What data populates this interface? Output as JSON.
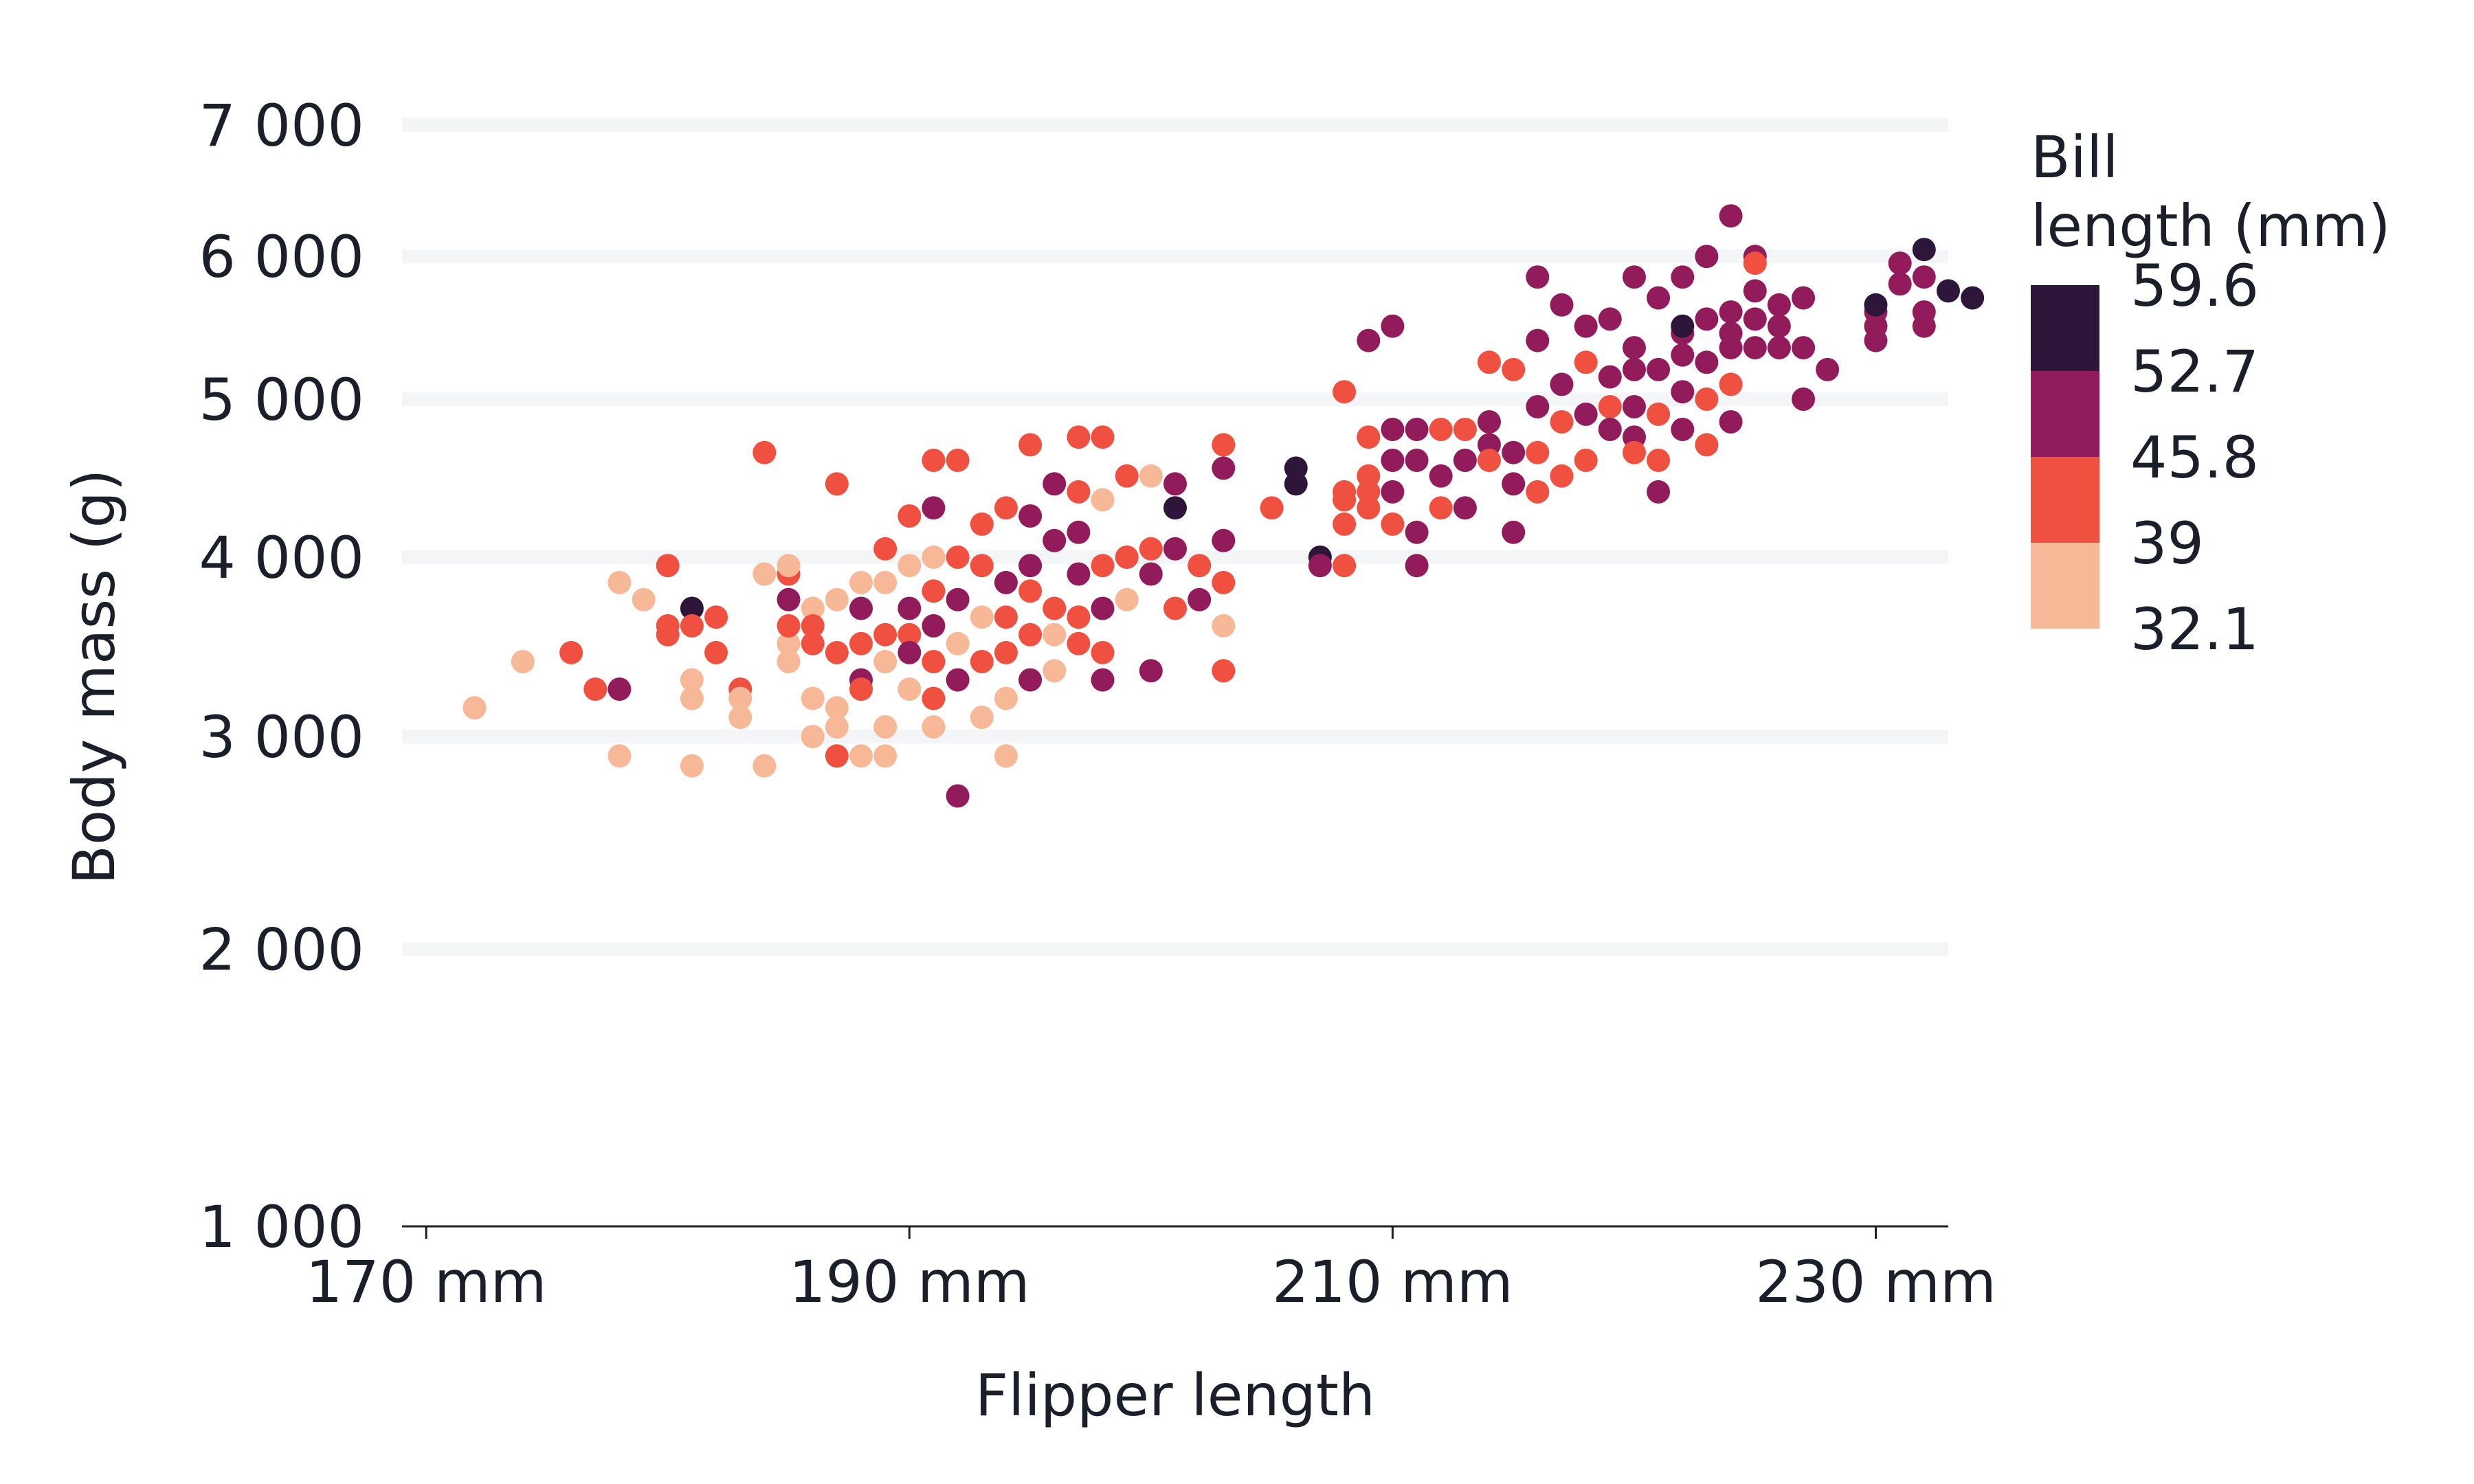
{
  "chart_data": {
    "type": "scatter",
    "title": "",
    "xlabel": "Flipper length",
    "ylabel": "Body mass (g)",
    "x_scale": "linear",
    "y_scale": "sqrt",
    "xlim": [
      169,
      233
    ],
    "ylim": [
      1000,
      7000
    ],
    "x_ticks": [
      170,
      190,
      210,
      230
    ],
    "x_tick_labels": [
      "170 mm",
      "190 mm",
      "210 mm",
      "230 mm"
    ],
    "y_ticks": [
      1000,
      2000,
      3000,
      4000,
      5000,
      6000,
      7000
    ],
    "y_tick_labels": [
      "1 000",
      "2 000",
      "3 000",
      "4 000",
      "5 000",
      "6 000",
      "7 000"
    ],
    "grid": "horizontal",
    "legend": {
      "title": "Bill\nlength (mm)",
      "title_lines": [
        "Bill",
        "length (mm)"
      ],
      "placement": "right",
      "bins": [
        {
          "label": "59.6",
          "color": "#2d1639"
        },
        {
          "label": "52.7",
          "color": "#921c5b"
        },
        {
          "label": "45.8",
          "color": "#ef5040"
        },
        {
          "label": "39",
          "color": "#f6b896"
        },
        {
          "label": "32.1",
          "color": ""
        }
      ]
    },
    "colors": [
      "#f6b896",
      "#ef5040",
      "#921c5b",
      "#2d1639"
    ],
    "point_fields": [
      "flipper_length_mm",
      "body_mass_g",
      "color_bin_0_to_3"
    ],
    "points": [
      [
        172,
        3150,
        0
      ],
      [
        174,
        3400,
        0
      ],
      [
        176,
        3450,
        1
      ],
      [
        177,
        3250,
        1
      ],
      [
        178,
        3250,
        2
      ],
      [
        178,
        3850,
        0
      ],
      [
        178,
        2900,
        0
      ],
      [
        179,
        3750,
        0
      ],
      [
        180,
        3600,
        1
      ],
      [
        180,
        3950,
        1
      ],
      [
        180,
        3550,
        1
      ],
      [
        181,
        3700,
        3
      ],
      [
        181,
        3600,
        1
      ],
      [
        181,
        3300,
        0
      ],
      [
        181,
        2850,
        0
      ],
      [
        181,
        3200,
        0
      ],
      [
        182,
        3650,
        1
      ],
      [
        182,
        3450,
        1
      ],
      [
        183,
        3250,
        1
      ],
      [
        183,
        3200,
        0
      ],
      [
        183,
        3100,
        0
      ],
      [
        184,
        4650,
        1
      ],
      [
        184,
        3900,
        0
      ],
      [
        184,
        2850,
        0
      ],
      [
        185,
        3900,
        1
      ],
      [
        185,
        3500,
        0
      ],
      [
        185,
        3400,
        0
      ],
      [
        185,
        3600,
        1
      ],
      [
        185,
        3950,
        0
      ],
      [
        185,
        3750,
        2
      ],
      [
        186,
        3700,
        0
      ],
      [
        186,
        3600,
        1
      ],
      [
        186,
        3500,
        1
      ],
      [
        186,
        3200,
        0
      ],
      [
        186,
        3000,
        0
      ],
      [
        187,
        4450,
        1
      ],
      [
        187,
        3750,
        0
      ],
      [
        187,
        3450,
        1
      ],
      [
        187,
        3150,
        0
      ],
      [
        187,
        3050,
        0
      ],
      [
        187,
        2900,
        1
      ],
      [
        188,
        3850,
        0
      ],
      [
        188,
        3700,
        2
      ],
      [
        188,
        3500,
        1
      ],
      [
        188,
        3300,
        2
      ],
      [
        188,
        3250,
        1
      ],
      [
        188,
        2900,
        0
      ],
      [
        189,
        4050,
        1
      ],
      [
        189,
        3850,
        0
      ],
      [
        189,
        3550,
        1
      ],
      [
        189,
        3400,
        0
      ],
      [
        189,
        3050,
        0
      ],
      [
        189,
        2900,
        0
      ],
      [
        190,
        4250,
        1
      ],
      [
        190,
        3950,
        0
      ],
      [
        190,
        3700,
        2
      ],
      [
        190,
        3550,
        1
      ],
      [
        190,
        3450,
        2
      ],
      [
        190,
        3250,
        0
      ],
      [
        191,
        4600,
        1
      ],
      [
        191,
        4300,
        2
      ],
      [
        191,
        4000,
        0
      ],
      [
        191,
        3800,
        1
      ],
      [
        191,
        3600,
        2
      ],
      [
        191,
        3400,
        1
      ],
      [
        191,
        3200,
        1
      ],
      [
        191,
        3050,
        0
      ],
      [
        192,
        4600,
        1
      ],
      [
        192,
        4000,
        1
      ],
      [
        192,
        3750,
        2
      ],
      [
        192,
        3500,
        0
      ],
      [
        192,
        3300,
        2
      ],
      [
        192,
        2700,
        2
      ],
      [
        193,
        4200,
        1
      ],
      [
        193,
        3950,
        1
      ],
      [
        193,
        3650,
        0
      ],
      [
        193,
        3400,
        1
      ],
      [
        193,
        3100,
        0
      ],
      [
        194,
        4300,
        1
      ],
      [
        194,
        3850,
        2
      ],
      [
        194,
        3650,
        1
      ],
      [
        194,
        3450,
        1
      ],
      [
        194,
        3200,
        0
      ],
      [
        194,
        2900,
        0
      ],
      [
        195,
        4700,
        1
      ],
      [
        195,
        4250,
        2
      ],
      [
        195,
        3950,
        2
      ],
      [
        195,
        3800,
        1
      ],
      [
        195,
        3550,
        1
      ],
      [
        195,
        3300,
        2
      ],
      [
        196,
        4450,
        2
      ],
      [
        196,
        4100,
        2
      ],
      [
        196,
        3700,
        1
      ],
      [
        196,
        3550,
        0
      ],
      [
        196,
        3350,
        0
      ],
      [
        197,
        4750,
        1
      ],
      [
        197,
        4400,
        1
      ],
      [
        197,
        4150,
        2
      ],
      [
        197,
        3900,
        2
      ],
      [
        197,
        3650,
        1
      ],
      [
        197,
        3500,
        1
      ],
      [
        198,
        4750,
        1
      ],
      [
        198,
        4350,
        0
      ],
      [
        198,
        3950,
        1
      ],
      [
        198,
        3700,
        2
      ],
      [
        198,
        3450,
        1
      ],
      [
        198,
        3300,
        2
      ],
      [
        199,
        4500,
        1
      ],
      [
        199,
        4000,
        1
      ],
      [
        199,
        3750,
        0
      ],
      [
        200,
        4500,
        0
      ],
      [
        200,
        4050,
        1
      ],
      [
        200,
        3900,
        2
      ],
      [
        200,
        3350,
        2
      ],
      [
        201,
        4450,
        2
      ],
      [
        201,
        4050,
        2
      ],
      [
        201,
        3700,
        1
      ],
      [
        201,
        4300,
        3
      ],
      [
        202,
        3950,
        1
      ],
      [
        202,
        3750,
        2
      ],
      [
        203,
        4700,
        1
      ],
      [
        203,
        4550,
        2
      ],
      [
        203,
        4100,
        2
      ],
      [
        203,
        3850,
        1
      ],
      [
        203,
        3600,
        0
      ],
      [
        203,
        3350,
        1
      ],
      [
        205,
        4300,
        1
      ],
      [
        206,
        4550,
        3
      ],
      [
        206,
        4450,
        3
      ],
      [
        207,
        4000,
        3
      ],
      [
        207,
        3950,
        2
      ],
      [
        208,
        5050,
        1
      ],
      [
        208,
        4400,
        1
      ],
      [
        208,
        4350,
        1
      ],
      [
        208,
        4200,
        1
      ],
      [
        208,
        3950,
        1
      ],
      [
        209,
        5400,
        2
      ],
      [
        209,
        4750,
        1
      ],
      [
        209,
        4500,
        1
      ],
      [
        209,
        4400,
        1
      ],
      [
        209,
        4300,
        1
      ],
      [
        210,
        5500,
        2
      ],
      [
        210,
        4800,
        2
      ],
      [
        210,
        4600,
        2
      ],
      [
        210,
        4400,
        2
      ],
      [
        210,
        4200,
        1
      ],
      [
        211,
        4800,
        2
      ],
      [
        211,
        4600,
        2
      ],
      [
        211,
        4150,
        2
      ],
      [
        211,
        3950,
        2
      ],
      [
        212,
        4800,
        1
      ],
      [
        212,
        4500,
        2
      ],
      [
        212,
        4300,
        1
      ],
      [
        213,
        4800,
        1
      ],
      [
        213,
        4600,
        2
      ],
      [
        213,
        4300,
        2
      ],
      [
        214,
        4850,
        2
      ],
      [
        214,
        5250,
        1
      ],
      [
        214,
        4700,
        2
      ],
      [
        214,
        4600,
        1
      ],
      [
        215,
        5200,
        1
      ],
      [
        215,
        4650,
        2
      ],
      [
        215,
        4450,
        2
      ],
      [
        215,
        4150,
        2
      ],
      [
        216,
        5850,
        2
      ],
      [
        216,
        5400,
        2
      ],
      [
        216,
        4950,
        2
      ],
      [
        216,
        4650,
        1
      ],
      [
        216,
        4400,
        1
      ],
      [
        217,
        5650,
        2
      ],
      [
        217,
        5100,
        2
      ],
      [
        217,
        4850,
        1
      ],
      [
        217,
        4500,
        1
      ],
      [
        218,
        5500,
        2
      ],
      [
        218,
        5250,
        1
      ],
      [
        218,
        4900,
        2
      ],
      [
        218,
        4600,
        1
      ],
      [
        219,
        5550,
        2
      ],
      [
        219,
        5150,
        2
      ],
      [
        219,
        4950,
        1
      ],
      [
        219,
        4800,
        2
      ],
      [
        220,
        5850,
        2
      ],
      [
        220,
        5350,
        2
      ],
      [
        220,
        5200,
        2
      ],
      [
        220,
        4950,
        2
      ],
      [
        220,
        4750,
        2
      ],
      [
        220,
        4650,
        1
      ],
      [
        221,
        5700,
        2
      ],
      [
        221,
        5200,
        2
      ],
      [
        221,
        4900,
        1
      ],
      [
        221,
        4600,
        1
      ],
      [
        221,
        4400,
        2
      ],
      [
        222,
        5850,
        2
      ],
      [
        222,
        5450,
        2
      ],
      [
        222,
        5500,
        3
      ],
      [
        222,
        5300,
        2
      ],
      [
        222,
        5050,
        2
      ],
      [
        222,
        4800,
        2
      ],
      [
        223,
        6000,
        2
      ],
      [
        223,
        5550,
        2
      ],
      [
        223,
        5250,
        2
      ],
      [
        223,
        5000,
        1
      ],
      [
        223,
        4700,
        1
      ],
      [
        224,
        6300,
        2
      ],
      [
        224,
        5600,
        2
      ],
      [
        224,
        5450,
        2
      ],
      [
        224,
        5350,
        2
      ],
      [
        224,
        5100,
        1
      ],
      [
        224,
        4850,
        2
      ],
      [
        225,
        6000,
        2
      ],
      [
        225,
        5750,
        2
      ],
      [
        225,
        5550,
        2
      ],
      [
        225,
        5350,
        2
      ],
      [
        225,
        5950,
        1
      ],
      [
        226,
        5650,
        2
      ],
      [
        226,
        5500,
        2
      ],
      [
        226,
        5350,
        2
      ],
      [
        227,
        5700,
        2
      ],
      [
        227,
        5350,
        2
      ],
      [
        227,
        5000,
        2
      ],
      [
        228,
        5200,
        2
      ],
      [
        230,
        5600,
        2
      ],
      [
        230,
        5500,
        2
      ],
      [
        230,
        5400,
        2
      ],
      [
        230,
        5650,
        3
      ],
      [
        231,
        5800,
        2
      ],
      [
        231,
        5950,
        2
      ],
      [
        232,
        5850,
        2
      ],
      [
        232,
        5600,
        2
      ],
      [
        232,
        5500,
        2
      ],
      [
        232,
        6050,
        3
      ],
      [
        233,
        5750,
        3
      ],
      [
        234,
        5700,
        3
      ]
    ]
  }
}
